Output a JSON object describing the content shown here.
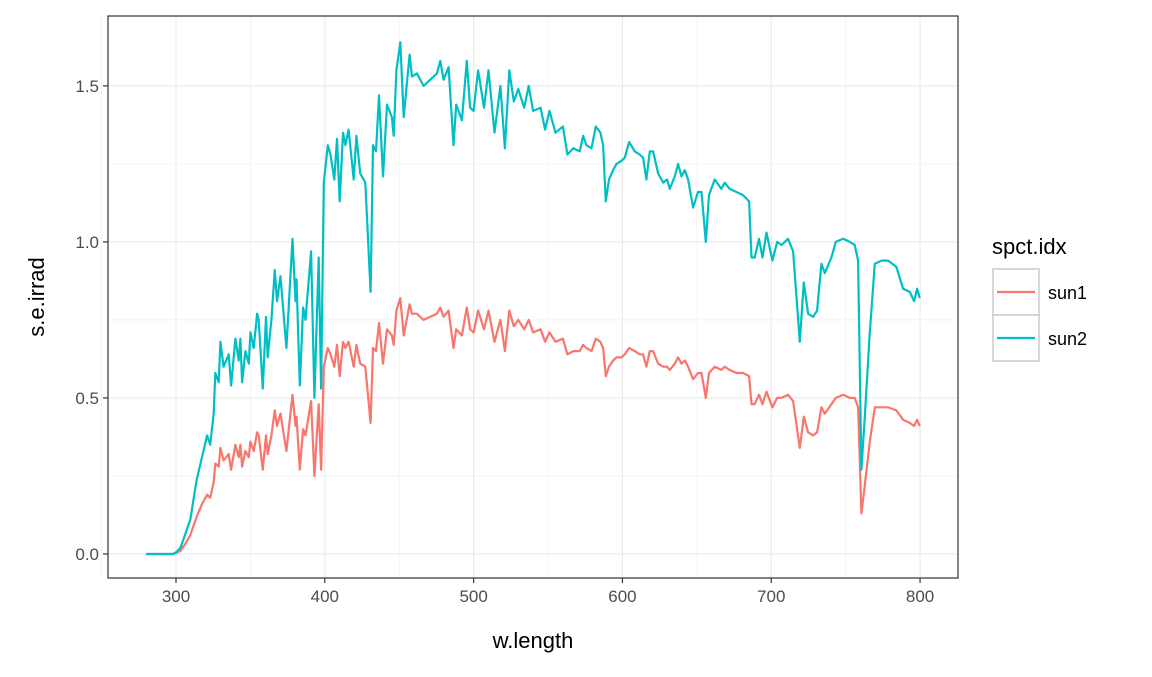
{
  "chart_data": {
    "type": "line",
    "xlabel": "w.length",
    "ylabel": "s.e.irrad",
    "xlim": [
      254.3,
      825.5
    ],
    "ylim": [
      -0.077,
      1.724
    ],
    "x_ticks": [
      300,
      400,
      500,
      600,
      700,
      800
    ],
    "x_tick_labels": [
      "300",
      "400",
      "500",
      "600",
      "700",
      "800"
    ],
    "y_ticks": [
      0,
      0.5,
      1.0,
      1.5
    ],
    "y_tick_labels": [
      "0.0",
      "0.5",
      "1.0",
      "1.5"
    ],
    "grid": true,
    "legend": {
      "title": "spct.idx",
      "placement": "right"
    },
    "x": [
      280,
      298,
      300,
      303,
      306,
      309.6,
      314,
      317.5,
      320.9,
      323,
      325.3,
      326.4,
      328.7,
      329.8,
      332,
      335.4,
      337,
      339.9,
      342.1,
      343.3,
      344.4,
      346.6,
      348.9,
      350,
      352.2,
      354.5,
      355.6,
      358.3,
      360.5,
      361.6,
      364.1,
      366.4,
      367.9,
      370.2,
      374.2,
      378.3,
      380.3,
      381,
      383.2,
      385.4,
      387,
      390.8,
      393,
      395.9,
      397.5,
      399.3,
      402,
      403.8,
      406.4,
      408.2,
      410,
      412.2,
      413.8,
      416,
      419.4,
      421.2,
      423.8,
      427.2,
      430.8,
      432.4,
      434.4,
      436.4,
      439.1,
      441.8,
      445.1,
      446.3,
      448.1,
      450.7,
      453,
      457,
      458.5,
      461.9,
      466.4,
      470.9,
      475.3,
      477.6,
      479.8,
      483.2,
      486.5,
      488.3,
      492.1,
      495.4,
      497.6,
      500,
      503,
      507,
      510,
      514,
      518,
      521,
      524,
      527,
      530,
      534,
      537,
      540,
      545,
      548,
      551,
      555,
      560,
      563,
      567,
      571.3,
      573.6,
      575.8,
      579.2,
      582.1,
      585.2,
      587,
      588.8,
      591,
      593.7,
      596,
      599.3,
      601.6,
      604.5,
      608.3,
      611.6,
      613.9,
      616.1,
      618.4,
      620.6,
      624,
      627.3,
      630,
      631.8,
      635.2,
      637.4,
      639.7,
      641.9,
      644.1,
      647.5,
      650.8,
      653.1,
      656,
      658.2,
      662,
      666.5,
      668.7,
      672.1,
      676.6,
      681,
      685.1,
      686.7,
      688.9,
      691.8,
      694.1,
      696.8,
      700.8,
      704,
      706.9,
      711.3,
      714.7,
      719.2,
      721.9,
      724.8,
      728.1,
      730.8,
      733.7,
      736,
      740.4,
      743.4,
      748.3,
      752.8,
      756.1,
      758.4,
      760.6,
      762.9,
      766.2,
      769.6,
      774.1,
      778.5,
      784.1,
      788.6,
      793.1,
      796,
      798,
      799.8
    ],
    "series": [
      {
        "name": "sun1",
        "color": "#F8766D",
        "values": [
          0,
          0,
          0.003,
          0.01,
          0.03,
          0.06,
          0.12,
          0.16,
          0.19,
          0.18,
          0.23,
          0.29,
          0.28,
          0.34,
          0.3,
          0.32,
          0.27,
          0.35,
          0.31,
          0.35,
          0.28,
          0.33,
          0.31,
          0.36,
          0.33,
          0.39,
          0.38,
          0.27,
          0.38,
          0.32,
          0.38,
          0.46,
          0.41,
          0.45,
          0.33,
          0.51,
          0.41,
          0.44,
          0.27,
          0.4,
          0.38,
          0.49,
          0.25,
          0.48,
          0.27,
          0.6,
          0.66,
          0.64,
          0.6,
          0.67,
          0.57,
          0.68,
          0.66,
          0.68,
          0.6,
          0.67,
          0.61,
          0.6,
          0.42,
          0.66,
          0.65,
          0.74,
          0.61,
          0.72,
          0.7,
          0.67,
          0.78,
          0.82,
          0.7,
          0.8,
          0.77,
          0.77,
          0.75,
          0.76,
          0.77,
          0.79,
          0.76,
          0.78,
          0.66,
          0.72,
          0.7,
          0.79,
          0.72,
          0.71,
          0.78,
          0.72,
          0.78,
          0.68,
          0.75,
          0.65,
          0.78,
          0.73,
          0.75,
          0.72,
          0.75,
          0.71,
          0.72,
          0.68,
          0.71,
          0.68,
          0.69,
          0.64,
          0.65,
          0.65,
          0.67,
          0.66,
          0.65,
          0.69,
          0.68,
          0.66,
          0.57,
          0.6,
          0.62,
          0.63,
          0.63,
          0.64,
          0.66,
          0.65,
          0.64,
          0.64,
          0.6,
          0.65,
          0.65,
          0.61,
          0.6,
          0.6,
          0.59,
          0.61,
          0.63,
          0.61,
          0.62,
          0.6,
          0.56,
          0.58,
          0.58,
          0.5,
          0.58,
          0.6,
          0.59,
          0.6,
          0.59,
          0.58,
          0.58,
          0.57,
          0.48,
          0.48,
          0.51,
          0.48,
          0.52,
          0.47,
          0.5,
          0.5,
          0.51,
          0.49,
          0.34,
          0.44,
          0.39,
          0.38,
          0.39,
          0.47,
          0.45,
          0.48,
          0.5,
          0.51,
          0.5,
          0.5,
          0.47,
          0.13,
          0.22,
          0.36,
          0.47,
          0.47,
          0.47,
          0.46,
          0.43,
          0.42,
          0.41,
          0.43,
          0.41
        ]
      },
      {
        "name": "sun2",
        "color": "#00BFC4",
        "values": [
          0,
          0,
          0.005,
          0.02,
          0.06,
          0.11,
          0.24,
          0.31,
          0.38,
          0.35,
          0.45,
          0.58,
          0.55,
          0.68,
          0.6,
          0.64,
          0.54,
          0.69,
          0.62,
          0.69,
          0.55,
          0.65,
          0.61,
          0.71,
          0.66,
          0.77,
          0.75,
          0.53,
          0.76,
          0.63,
          0.75,
          0.91,
          0.81,
          0.89,
          0.66,
          1.01,
          0.81,
          0.88,
          0.54,
          0.79,
          0.75,
          0.97,
          0.5,
          0.95,
          0.53,
          1.19,
          1.31,
          1.28,
          1.2,
          1.33,
          1.13,
          1.35,
          1.31,
          1.36,
          1.2,
          1.34,
          1.22,
          1.19,
          0.84,
          1.31,
          1.29,
          1.47,
          1.21,
          1.44,
          1.4,
          1.34,
          1.55,
          1.64,
          1.4,
          1.6,
          1.53,
          1.54,
          1.5,
          1.52,
          1.54,
          1.58,
          1.52,
          1.56,
          1.31,
          1.44,
          1.39,
          1.58,
          1.43,
          1.42,
          1.55,
          1.43,
          1.55,
          1.35,
          1.5,
          1.3,
          1.55,
          1.45,
          1.49,
          1.43,
          1.5,
          1.42,
          1.43,
          1.36,
          1.42,
          1.35,
          1.37,
          1.28,
          1.3,
          1.29,
          1.34,
          1.31,
          1.3,
          1.37,
          1.35,
          1.31,
          1.13,
          1.2,
          1.23,
          1.25,
          1.26,
          1.27,
          1.32,
          1.29,
          1.28,
          1.27,
          1.2,
          1.29,
          1.29,
          1.22,
          1.19,
          1.2,
          1.17,
          1.21,
          1.25,
          1.21,
          1.23,
          1.2,
          1.11,
          1.16,
          1.16,
          1.0,
          1.15,
          1.2,
          1.17,
          1.19,
          1.17,
          1.16,
          1.15,
          1.13,
          0.95,
          0.95,
          1.01,
          0.95,
          1.03,
          0.94,
          1.0,
          0.99,
          1.01,
          0.97,
          0.68,
          0.87,
          0.77,
          0.76,
          0.78,
          0.93,
          0.9,
          0.95,
          1.0,
          1.01,
          1.0,
          0.99,
          0.94,
          0.27,
          0.44,
          0.71,
          0.93,
          0.94,
          0.94,
          0.92,
          0.85,
          0.84,
          0.81,
          0.85,
          0.82
        ]
      }
    ]
  }
}
